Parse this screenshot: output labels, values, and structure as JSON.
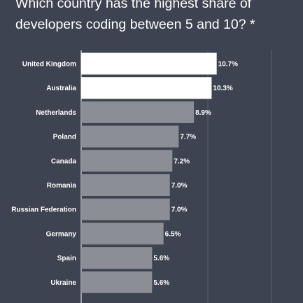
{
  "title": "Which country has the highest share of developers coding between 5 and 10? *",
  "colors": {
    "background": "#3d4350",
    "highlight_bar": "#ffffff",
    "bar": "#8c8e96",
    "gridline": "#5b6170",
    "text": "#ffffff"
  },
  "chart_data": {
    "type": "bar",
    "orientation": "horizontal",
    "categories": [
      "United Kingdom",
      "Australia",
      "Netherlands",
      "Poland",
      "Canada",
      "Romania",
      "Russian Federation",
      "Germany",
      "Spain",
      "Ukraine"
    ],
    "values": [
      10.7,
      10.3,
      8.9,
      7.7,
      7.2,
      7.0,
      7.0,
      6.5,
      5.6,
      5.6
    ],
    "value_labels": [
      "10.7%",
      "10.3%",
      "8.9%",
      "7.7%",
      "7.2%",
      "7.0%",
      "7.0%",
      "6.5%",
      "5.6%",
      "5.6%"
    ],
    "highlighted": [
      true,
      true,
      false,
      false,
      false,
      false,
      false,
      false,
      false,
      false
    ],
    "xlim": [
      0,
      20
    ],
    "grid": true,
    "gridlines_at": [
      0,
      10,
      15
    ]
  }
}
